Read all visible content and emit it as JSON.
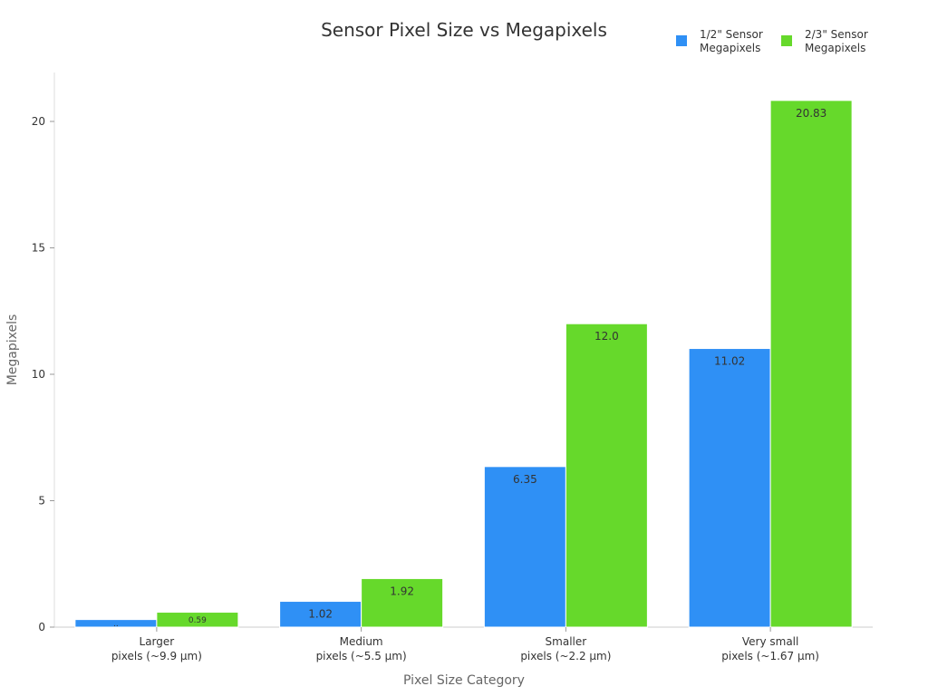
{
  "chart_data": {
    "type": "bar",
    "title": "Sensor Pixel Size vs Megapixels",
    "xlabel": "Pixel Size Category",
    "ylabel": "Megapixels",
    "ylim": [
      0,
      22
    ],
    "yticks": [
      0,
      5,
      10,
      15,
      20
    ],
    "categories": [
      [
        "Larger",
        "pixels (~9.9 µm)"
      ],
      [
        "Medium",
        "pixels (~5.5 µm)"
      ],
      [
        "Smaller",
        "pixels (~2.2 µm)"
      ],
      [
        "Very small",
        "pixels (~1.67 µm)"
      ]
    ],
    "series": [
      {
        "name": [
          "1/2\" Sensor",
          "Megapixels"
        ],
        "color": "#2f90f5",
        "values": [
          0.3,
          1.02,
          6.35,
          11.02
        ],
        "labels": [
          "..",
          "1.02",
          "6.35",
          "11.02"
        ]
      },
      {
        "name": [
          "2/3\" Sensor",
          "Megapixels"
        ],
        "color": "#66d92b",
        "values": [
          0.59,
          1.92,
          12.0,
          20.83
        ],
        "labels": [
          "0.59",
          "1.92",
          "12.0",
          "20.83"
        ]
      }
    ],
    "grid": false,
    "legend": "top-right"
  }
}
